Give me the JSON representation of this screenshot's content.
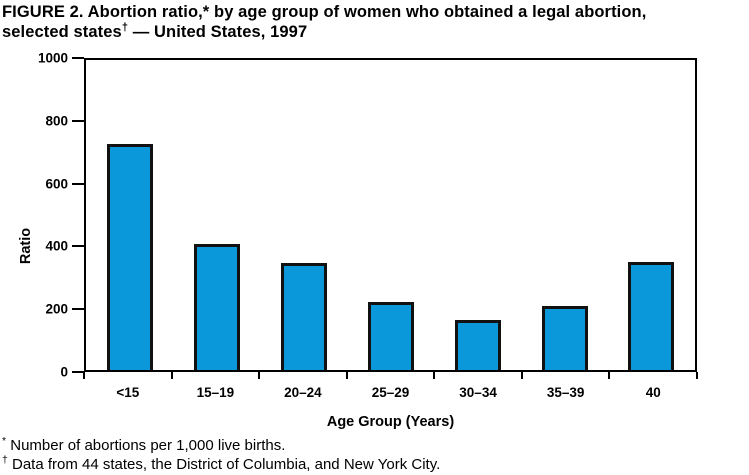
{
  "figure": {
    "title_line1": "FIGURE 2. Abortion ratio,* by age group of women who obtained a legal abortion,",
    "title_line2_pre": "selected states",
    "title_line2_dagger": "†",
    "title_line2_post": " — United States, 1997"
  },
  "chart_data": {
    "type": "bar",
    "title": "FIGURE 2. Abortion ratio, by age group of women who obtained a legal abortion, selected states — United States, 1997",
    "categories": [
      "<15",
      "15–19",
      "20–24",
      "25–29",
      "30–34",
      "35–39",
      "40"
    ],
    "values": [
      730,
      405,
      345,
      220,
      160,
      207,
      347
    ],
    "xlabel": "Age Group (Years)",
    "ylabel": "Ratio",
    "ylim": [
      0,
      1000
    ],
    "yticks": [
      0,
      200,
      400,
      600,
      800,
      1000
    ],
    "grid": false,
    "legend": "none",
    "bar_fill": "#0a98da",
    "bar_border": "#111111",
    "axis_color": "#000000"
  },
  "footnotes": [
    {
      "marker": "*",
      "text": " Number of abortions per 1,000 live births."
    },
    {
      "marker": "†",
      "text": " Data from 44 states, the District of Columbia, and New York City."
    }
  ]
}
